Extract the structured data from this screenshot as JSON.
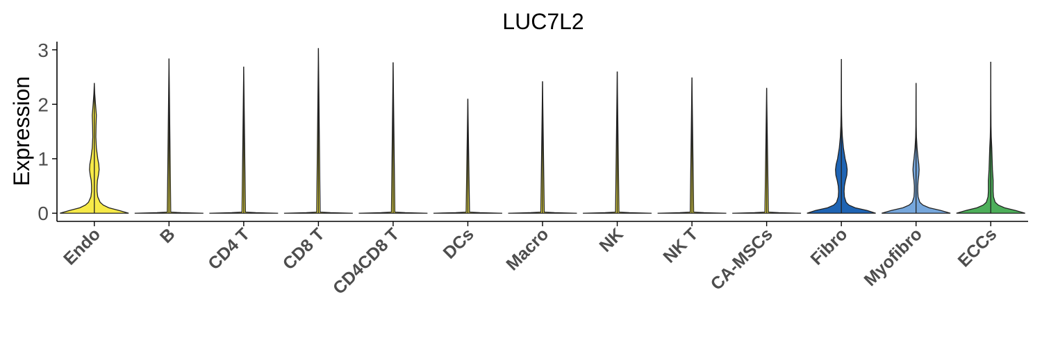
{
  "chart_data": {
    "type": "violin",
    "title": "LUC7L2",
    "xlabel": "",
    "ylabel": "Expression",
    "ylim": [
      -0.15,
      3.15
    ],
    "yticks": [
      0,
      1,
      2,
      3
    ],
    "grid": false,
    "legend": "none",
    "categories": [
      "Endo",
      "B",
      "CD4 T",
      "CD8 T",
      "CD4CD8 T",
      "DCs",
      "Macro",
      "NK",
      "NK T",
      "CA-MSCs",
      "Fibro",
      "Myofibro",
      "ECCs"
    ],
    "series": [
      {
        "category": "Endo",
        "color": "#F7EA48",
        "max": 2.39,
        "profile": [
          [
            0,
            1.0
          ],
          [
            0.05,
            0.72
          ],
          [
            0.1,
            0.42
          ],
          [
            0.15,
            0.26
          ],
          [
            0.2,
            0.17
          ],
          [
            0.3,
            0.1
          ],
          [
            0.4,
            0.08
          ],
          [
            0.5,
            0.08
          ],
          [
            0.6,
            0.09
          ],
          [
            0.7,
            0.12
          ],
          [
            0.8,
            0.14
          ],
          [
            0.9,
            0.13
          ],
          [
            1.0,
            0.1
          ],
          [
            1.2,
            0.06
          ],
          [
            1.4,
            0.045
          ],
          [
            1.6,
            0.05
          ],
          [
            1.8,
            0.06
          ],
          [
            2.0,
            0.035
          ],
          [
            2.2,
            0.012
          ],
          [
            2.39,
            0.0
          ]
        ]
      },
      {
        "category": "B",
        "color": "#F7EA48",
        "max": 2.84,
        "profile": [
          [
            0,
            1.0
          ],
          [
            0.01,
            0.35
          ],
          [
            0.02,
            0.05
          ],
          [
            0.05,
            0.0
          ],
          [
            2.84,
            0.0
          ]
        ]
      },
      {
        "category": "CD4 T",
        "color": "#F7EA48",
        "max": 2.69,
        "profile": [
          [
            0,
            1.0
          ],
          [
            0.01,
            0.35
          ],
          [
            0.02,
            0.05
          ],
          [
            0.05,
            0.0
          ],
          [
            2.69,
            0.0
          ]
        ]
      },
      {
        "category": "CD8 T",
        "color": "#F7EA48",
        "max": 3.03,
        "profile": [
          [
            0,
            1.0
          ],
          [
            0.01,
            0.35
          ],
          [
            0.02,
            0.05
          ],
          [
            0.05,
            0.0
          ],
          [
            3.03,
            0.0
          ]
        ]
      },
      {
        "category": "CD4CD8 T",
        "color": "#F7EA48",
        "max": 2.77,
        "profile": [
          [
            0,
            1.0
          ],
          [
            0.01,
            0.35
          ],
          [
            0.02,
            0.05
          ],
          [
            0.05,
            0.0
          ],
          [
            2.77,
            0.0
          ]
        ]
      },
      {
        "category": "DCs",
        "color": "#F7EA48",
        "max": 2.1,
        "profile": [
          [
            0,
            1.0
          ],
          [
            0.01,
            0.35
          ],
          [
            0.02,
            0.05
          ],
          [
            0.05,
            0.0
          ],
          [
            2.1,
            0.0
          ]
        ]
      },
      {
        "category": "Macro",
        "color": "#F7EA48",
        "max": 2.42,
        "profile": [
          [
            0,
            1.0
          ],
          [
            0.01,
            0.35
          ],
          [
            0.02,
            0.05
          ],
          [
            0.05,
            0.0
          ],
          [
            2.42,
            0.0
          ]
        ]
      },
      {
        "category": "NK",
        "color": "#F7EA48",
        "max": 2.6,
        "profile": [
          [
            0,
            1.0
          ],
          [
            0.01,
            0.35
          ],
          [
            0.02,
            0.05
          ],
          [
            0.05,
            0.0
          ],
          [
            2.6,
            0.0
          ]
        ]
      },
      {
        "category": "NK T",
        "color": "#F7EA48",
        "max": 2.49,
        "profile": [
          [
            0,
            1.0
          ],
          [
            0.01,
            0.35
          ],
          [
            0.02,
            0.05
          ],
          [
            0.05,
            0.0
          ],
          [
            2.49,
            0.0
          ]
        ]
      },
      {
        "category": "CA-MSCs",
        "color": "#F7EA48",
        "max": 2.3,
        "profile": [
          [
            0,
            1.0
          ],
          [
            0.01,
            0.35
          ],
          [
            0.02,
            0.05
          ],
          [
            0.05,
            0.0
          ],
          [
            2.3,
            0.0
          ]
        ]
      },
      {
        "category": "Fibro",
        "color": "#1E64B4",
        "max": 2.83,
        "profile": [
          [
            0,
            1.0
          ],
          [
            0.05,
            0.75
          ],
          [
            0.1,
            0.4
          ],
          [
            0.15,
            0.22
          ],
          [
            0.2,
            0.14
          ],
          [
            0.3,
            0.09
          ],
          [
            0.4,
            0.08
          ],
          [
            0.5,
            0.09
          ],
          [
            0.6,
            0.12
          ],
          [
            0.7,
            0.16
          ],
          [
            0.8,
            0.17
          ],
          [
            0.9,
            0.15
          ],
          [
            1.0,
            0.11
          ],
          [
            1.2,
            0.06
          ],
          [
            1.4,
            0.03
          ],
          [
            1.6,
            0.015
          ],
          [
            1.8,
            0.008
          ],
          [
            2.0,
            0.005
          ],
          [
            2.4,
            0.003
          ],
          [
            2.83,
            0.0
          ]
        ]
      },
      {
        "category": "Myofibro",
        "color": "#76A7DC",
        "max": 2.39,
        "profile": [
          [
            0,
            1.0
          ],
          [
            0.05,
            0.72
          ],
          [
            0.1,
            0.38
          ],
          [
            0.15,
            0.2
          ],
          [
            0.2,
            0.11
          ],
          [
            0.3,
            0.06
          ],
          [
            0.4,
            0.05
          ],
          [
            0.5,
            0.05
          ],
          [
            0.6,
            0.06
          ],
          [
            0.7,
            0.08
          ],
          [
            0.8,
            0.09
          ],
          [
            0.9,
            0.08
          ],
          [
            1.0,
            0.06
          ],
          [
            1.2,
            0.03
          ],
          [
            1.4,
            0.012
          ],
          [
            1.6,
            0.006
          ],
          [
            1.8,
            0.004
          ],
          [
            2.0,
            0.003
          ],
          [
            2.39,
            0.0
          ]
        ]
      },
      {
        "category": "ECCs",
        "color": "#4DAF5A",
        "max": 2.78,
        "profile": [
          [
            0,
            1.0
          ],
          [
            0.05,
            0.72
          ],
          [
            0.1,
            0.4
          ],
          [
            0.15,
            0.22
          ],
          [
            0.2,
            0.13
          ],
          [
            0.3,
            0.08
          ],
          [
            0.4,
            0.07
          ],
          [
            0.5,
            0.07
          ],
          [
            0.6,
            0.07
          ],
          [
            0.7,
            0.06
          ],
          [
            0.8,
            0.05
          ],
          [
            0.9,
            0.045
          ],
          [
            1.0,
            0.04
          ],
          [
            1.2,
            0.03
          ],
          [
            1.4,
            0.015
          ],
          [
            1.6,
            0.008
          ],
          [
            2.0,
            0.004
          ],
          [
            2.4,
            0.002
          ],
          [
            2.78,
            0.0
          ]
        ]
      }
    ]
  }
}
